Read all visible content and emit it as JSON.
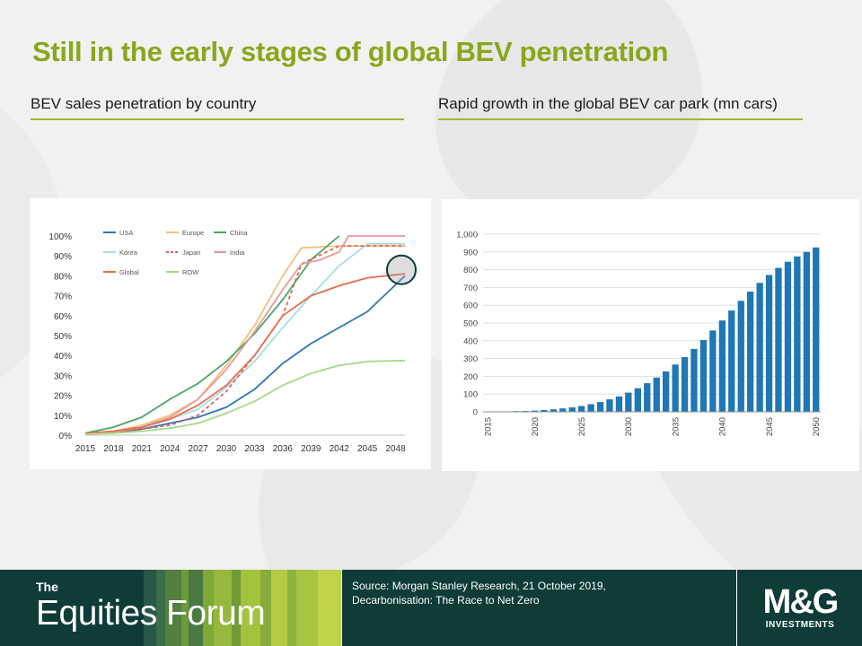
{
  "slide": {
    "title": "Still in the early stages of global BEV penetration",
    "subtitle_left": "BEV sales penetration by country",
    "subtitle_right": "Rapid growth in the global BEV car park (mn cars)"
  },
  "footer": {
    "brand_the": "The",
    "brand_name": "Equities Forum",
    "source_line1": "Source: Morgan Stanley Research, 21 October 2019,",
    "source_line2": "Decarbonisation: The Race to Net Zero",
    "logo_text": "M&G",
    "logo_sub": "INVESTMENTS"
  },
  "chart_data": [
    {
      "type": "line",
      "title": "BEV sales penetration by country",
      "x": [
        2015,
        2018,
        2021,
        2024,
        2027,
        2030,
        2033,
        2036,
        2039,
        2042,
        2045,
        2048
      ],
      "x_tick_labels": [
        "2015",
        "2018",
        "2021",
        "2024",
        "2027",
        "2030",
        "2033",
        "2036",
        "2039",
        "2042",
        "2045",
        "2048"
      ],
      "y_tick_labels": [
        "0%",
        "10%",
        "20%",
        "30%",
        "40%",
        "50%",
        "60%",
        "70%",
        "80%",
        "90%",
        "100%"
      ],
      "ylim": [
        0,
        100
      ],
      "xlim": [
        2015,
        2049
      ],
      "legend_position": "top-left",
      "annotation": "circle highlighting Global and USA near 80% at 2049",
      "series": [
        {
          "name": "USA",
          "color": "#2e75b6",
          "dash": false,
          "x": [
            2015,
            2018,
            2021,
            2024,
            2027,
            2030,
            2033,
            2036,
            2039,
            2042,
            2045,
            2049
          ],
          "values": [
            1,
            1.5,
            3,
            6,
            9,
            14,
            23,
            36,
            46,
            54,
            62,
            80
          ]
        },
        {
          "name": "Europe",
          "color": "#f0c27b",
          "dash": false,
          "x": [
            2015,
            2018,
            2021,
            2024,
            2027,
            2030,
            2033,
            2036,
            2038,
            2042,
            2045,
            2049
          ],
          "values": [
            1,
            2,
            5,
            10,
            18,
            35,
            55,
            80,
            94,
            95,
            95,
            95
          ]
        },
        {
          "name": "China",
          "color": "#4aa665",
          "dash": false,
          "x": [
            2015,
            2018,
            2021,
            2024,
            2027,
            2030,
            2033,
            2036,
            2039,
            2042
          ],
          "values": [
            1,
            4,
            9,
            18,
            26,
            37,
            51,
            68,
            88,
            100
          ]
        },
        {
          "name": "Korea",
          "color": "#a9dbe9",
          "dash": false,
          "x": [
            2015,
            2018,
            2021,
            2024,
            2027,
            2030,
            2033,
            2036,
            2039,
            2042,
            2045,
            2049
          ],
          "values": [
            1,
            1.5,
            4,
            8,
            13,
            24,
            37,
            54,
            70,
            85,
            96,
            96
          ]
        },
        {
          "name": "Japan",
          "color": "#e0625a",
          "dash": true,
          "x": [
            2015,
            2018,
            2021,
            2024,
            2027,
            2030,
            2033,
            2036,
            2038,
            2042,
            2045,
            2049
          ],
          "values": [
            1,
            1,
            3,
            5,
            10,
            22,
            40,
            60,
            86,
            95,
            95,
            95
          ]
        },
        {
          "name": "India",
          "color": "#e8999b",
          "dash": false,
          "x": [
            2015,
            2018,
            2021,
            2024,
            2027,
            2030,
            2033,
            2036,
            2038,
            2040,
            2042,
            2043,
            2045,
            2049
          ],
          "values": [
            1,
            1.5,
            4,
            9,
            18,
            33,
            52,
            73,
            86,
            88,
            92,
            100,
            100,
            100
          ]
        },
        {
          "name": "Global",
          "color": "#e46e4e",
          "dash": false,
          "x": [
            2015,
            2018,
            2021,
            2024,
            2027,
            2030,
            2033,
            2036,
            2039,
            2042,
            2045,
            2049
          ],
          "values": [
            1,
            2,
            4,
            8,
            15,
            25,
            40,
            60,
            70,
            75,
            79,
            81
          ]
        },
        {
          "name": "ROW",
          "color": "#a8d883",
          "dash": false,
          "x": [
            2015,
            2018,
            2021,
            2024,
            2027,
            2030,
            2033,
            2036,
            2039,
            2042,
            2045,
            2049
          ],
          "values": [
            0.5,
            1,
            2,
            3.5,
            6,
            11,
            17,
            25,
            31,
            35,
            37,
            37.5
          ]
        }
      ]
    },
    {
      "type": "bar",
      "title": "Rapid growth in the global BEV car park (mn cars)",
      "categories": [
        2015,
        2016,
        2017,
        2018,
        2019,
        2020,
        2021,
        2022,
        2023,
        2024,
        2025,
        2026,
        2027,
        2028,
        2029,
        2030,
        2031,
        2032,
        2033,
        2034,
        2035,
        2036,
        2037,
        2038,
        2039,
        2040,
        2041,
        2042,
        2043,
        2044,
        2045,
        2046,
        2047,
        2048,
        2049,
        2050
      ],
      "values": [
        1,
        1.5,
        2,
        4,
        5,
        7,
        10,
        14,
        19,
        25,
        33,
        43,
        55,
        70,
        87,
        108,
        133,
        161,
        193,
        228,
        266,
        308,
        354,
        404,
        458,
        514,
        570,
        625,
        677,
        726,
        770,
        810,
        845,
        875,
        900,
        925
      ],
      "x_tick_labels": [
        "2015",
        "2020",
        "2025",
        "2030",
        "2035",
        "2040",
        "2045",
        "2050"
      ],
      "y_tick_labels": [
        "0",
        "100",
        "200",
        "300",
        "400",
        "500",
        "600",
        "700",
        "800",
        "900",
        "1,000"
      ],
      "ylim": [
        0,
        1000
      ],
      "color": "#1f77b4",
      "grid": true
    }
  ]
}
